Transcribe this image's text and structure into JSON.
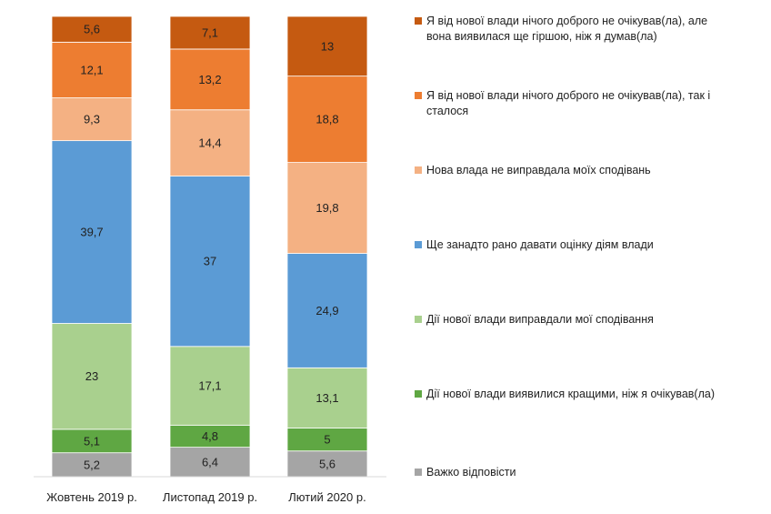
{
  "chart_data": {
    "type": "bar",
    "stacked": true,
    "orientation": "vertical",
    "title": "",
    "xlabel": "",
    "ylabel": "",
    "ylim": [
      0,
      100
    ],
    "grid": false,
    "legend_position": "right",
    "categories": [
      "Жовтень 2019 р.",
      "Листопад 2019 р.",
      "Лютий 2020 р."
    ],
    "series": [
      {
        "name": "Важко відповісти",
        "color": "#a5a5a5",
        "values": [
          5.2,
          6.4,
          5.6
        ],
        "labels": [
          "5,2",
          "6,4",
          "5,6"
        ]
      },
      {
        "name": "Дії нової влади виявилися кращими, ніж я очікував(ла)",
        "color": "#5fa743",
        "values": [
          5.1,
          4.8,
          5
        ],
        "labels": [
          "5,1",
          "4,8",
          "5"
        ]
      },
      {
        "name": "Дії нової влади виправдали мої сподівання",
        "color": "#a9d08e",
        "values": [
          23,
          17.1,
          13.1
        ],
        "labels": [
          "23",
          "17,1",
          "13,1"
        ]
      },
      {
        "name": "Ще занадто рано давати оцінку діям влади",
        "color": "#5b9bd5",
        "values": [
          39.7,
          37,
          24.9
        ],
        "labels": [
          "39,7",
          "37",
          "24,9"
        ]
      },
      {
        "name": "Нова влада не виправдала моїх сподівань",
        "color": "#f4b183",
        "values": [
          9.3,
          14.4,
          19.8
        ],
        "labels": [
          "9,3",
          "14,4",
          "19,8"
        ]
      },
      {
        "name": "Я від нової влади нічого доброго не очікував(ла), так і сталося",
        "color": "#ed7d31",
        "values": [
          12.1,
          13.2,
          18.8
        ],
        "labels": [
          "12,1",
          "13,2",
          "18,8"
        ]
      },
      {
        "name": "Я від нової влади нічого доброго не очікував(ла), але вона виявилася ще гіршою, ніж я думав(ла)",
        "color": "#c55a11",
        "values": [
          5.6,
          7.1,
          13
        ],
        "labels": [
          "5,6",
          "7,1",
          "13"
        ]
      }
    ],
    "legend": [
      {
        "lines": [
          "Я від нової влади нічого доброго не очікував(ла), але",
          "вона виявилася ще гіршою, ніж я думав(ла)"
        ],
        "color": "#c55a11"
      },
      {
        "lines": [
          "Я від нової влади нічого доброго не очікував(ла), так і",
          "сталося"
        ],
        "color": "#ed7d31"
      },
      {
        "lines": [
          "Нова влада не виправдала моїх сподівань"
        ],
        "color": "#f4b183"
      },
      {
        "lines": [
          "Ще занадто рано давати оцінку діям влади"
        ],
        "color": "#5b9bd5"
      },
      {
        "lines": [
          "Дії нової влади виправдали мої сподівання"
        ],
        "color": "#a9d08e"
      },
      {
        "lines": [
          "Дії нової влади виявилися кращими, ніж я очікував(ла)"
        ],
        "color": "#5fa743"
      },
      {
        "lines": [
          "Важко відповісти"
        ],
        "color": "#a5a5a5"
      }
    ]
  }
}
